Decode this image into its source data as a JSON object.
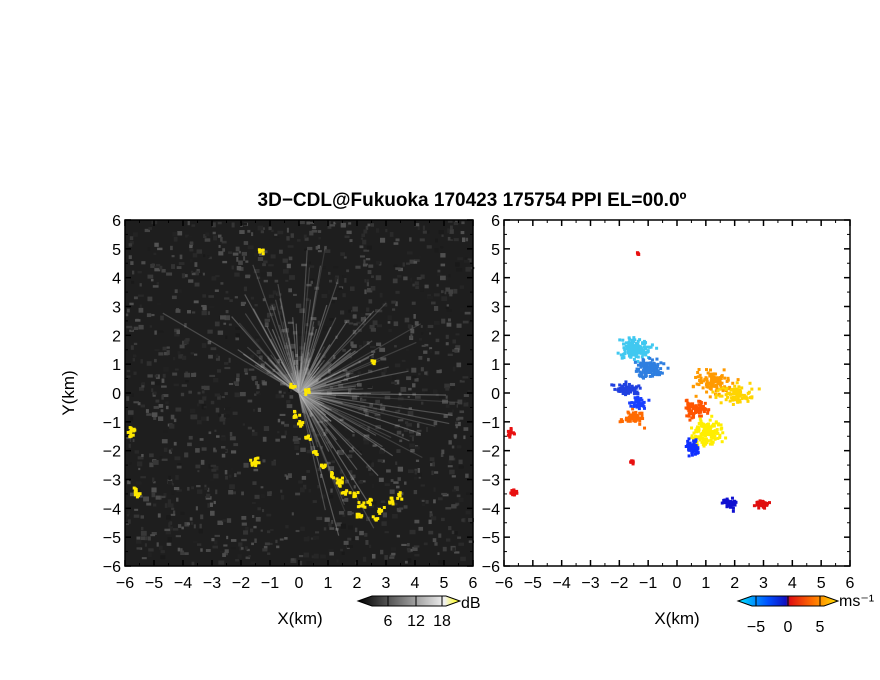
{
  "title": "3D−CDL@Fukuoka 170423 175754 PPI EL=00.0º",
  "chart_data": [
    {
      "type": "heatmap",
      "panel": "reflectivity",
      "xlabel": "X(km)",
      "ylabel": "Y(km)",
      "xlim": [
        -6,
        6
      ],
      "ylim": [
        -6,
        6
      ],
      "x_ticks": [
        "−6",
        "−5",
        "−4",
        "−3",
        "−2",
        "−1",
        "0",
        "1",
        "2",
        "3",
        "4",
        "5",
        "6"
      ],
      "y_ticks": [
        "6",
        "5",
        "4",
        "3",
        "2",
        "1",
        "0",
        "−1",
        "−2",
        "−3",
        "−4",
        "−5",
        "−6"
      ],
      "colorbar": {
        "unit": "dB",
        "ticks": [
          "6",
          "12",
          "18"
        ],
        "colors": [
          "#000000",
          "#ffffff",
          "#ffff00"
        ]
      },
      "background": "#1e1e1e",
      "highlight_color": "#ffe800",
      "yellow_echoes_km": [
        [
          -0.2,
          -0.7
        ],
        [
          0,
          -1
        ],
        [
          0.2,
          -1.5
        ],
        [
          0.5,
          -2
        ],
        [
          0.8,
          -2.5
        ],
        [
          1.1,
          -2.8
        ],
        [
          1.3,
          -3.1
        ],
        [
          1.6,
          -3.4
        ],
        [
          1.9,
          -3.5
        ],
        [
          2.1,
          -3.8
        ],
        [
          2.4,
          -3.7
        ],
        [
          2.8,
          -4
        ],
        [
          3.1,
          -3.7
        ],
        [
          3.4,
          -3.5
        ],
        [
          1.4,
          -3.0
        ],
        [
          2.0,
          -4.2
        ],
        [
          2.6,
          -4.3
        ],
        [
          -5.8,
          -1.2
        ],
        [
          -5.9,
          -1.4
        ],
        [
          -5.7,
          -3.3
        ],
        [
          -5.6,
          -3.5
        ],
        [
          -1.5,
          -2.3
        ],
        [
          -1.6,
          -2.4
        ],
        [
          -1.3,
          5
        ],
        [
          2.5,
          1.1
        ],
        [
          -0.3,
          0.3
        ],
        [
          0.2,
          0.1
        ]
      ]
    },
    {
      "type": "heatmap",
      "panel": "doppler_velocity",
      "xlabel": "X(km)",
      "xlim": [
        -6,
        6
      ],
      "ylim": [
        -6,
        6
      ],
      "x_ticks": [
        "−6",
        "−5",
        "−4",
        "−3",
        "−2",
        "−1",
        "0",
        "1",
        "2",
        "3",
        "4",
        "5",
        "6"
      ],
      "colorbar": {
        "unit": "ms⁻¹",
        "ticks": [
          "−5",
          "0",
          "5"
        ],
        "range": [
          -8,
          8
        ],
        "colors": [
          "#00e5ff",
          "#0050ff",
          "#1010c0",
          "#e01010",
          "#ff7000",
          "#ffe000"
        ]
      },
      "echo_clusters": [
        {
          "center": [
            -1.5,
            1.6
          ],
          "spread": [
            0.9,
            0.6
          ],
          "count": 140,
          "color": "#40c8f0"
        },
        {
          "center": [
            -1.0,
            0.9
          ],
          "spread": [
            0.8,
            0.5
          ],
          "count": 120,
          "color": "#2f7fe0"
        },
        {
          "center": [
            -1.8,
            0.2
          ],
          "spread": [
            0.8,
            0.35
          ],
          "count": 60,
          "color": "#2040e0"
        },
        {
          "center": [
            -1.6,
            -0.8
          ],
          "spread": [
            0.6,
            0.4
          ],
          "count": 50,
          "color": "#ff6a00"
        },
        {
          "center": [
            -1.4,
            -0.3
          ],
          "spread": [
            0.5,
            0.3
          ],
          "count": 40,
          "color": "#1a40ff"
        },
        {
          "center": [
            1.2,
            0.4
          ],
          "spread": [
            1.0,
            0.7
          ],
          "count": 110,
          "color": "#ff9a00"
        },
        {
          "center": [
            2.0,
            0.0
          ],
          "spread": [
            1.0,
            0.5
          ],
          "count": 80,
          "color": "#ffd400"
        },
        {
          "center": [
            1.0,
            -1.3
          ],
          "spread": [
            0.9,
            0.8
          ],
          "count": 140,
          "color": "#ffee00"
        },
        {
          "center": [
            0.6,
            -0.5
          ],
          "spread": [
            0.6,
            0.5
          ],
          "count": 70,
          "color": "#ff5500"
        },
        {
          "center": [
            0.5,
            -1.8
          ],
          "spread": [
            0.4,
            0.5
          ],
          "count": 60,
          "color": "#1030ff"
        },
        {
          "center": [
            1.8,
            -3.8
          ],
          "spread": [
            0.4,
            0.3
          ],
          "count": 40,
          "color": "#1010d0"
        },
        {
          "center": [
            2.9,
            -3.8
          ],
          "spread": [
            0.4,
            0.2
          ],
          "count": 40,
          "color": "#e01010"
        },
        {
          "center": [
            -5.8,
            -1.3
          ],
          "spread": [
            0.15,
            0.25
          ],
          "count": 15,
          "color": "#e81010"
        },
        {
          "center": [
            -5.7,
            -3.4
          ],
          "spread": [
            0.2,
            0.2
          ],
          "count": 18,
          "color": "#e81010"
        },
        {
          "center": [
            -1.6,
            -2.3
          ],
          "spread": [
            0.1,
            0.15
          ],
          "count": 8,
          "color": "#e81010"
        },
        {
          "center": [
            -1.4,
            4.9
          ],
          "spread": [
            0.05,
            0.1
          ],
          "count": 6,
          "color": "#e81010"
        }
      ]
    }
  ]
}
